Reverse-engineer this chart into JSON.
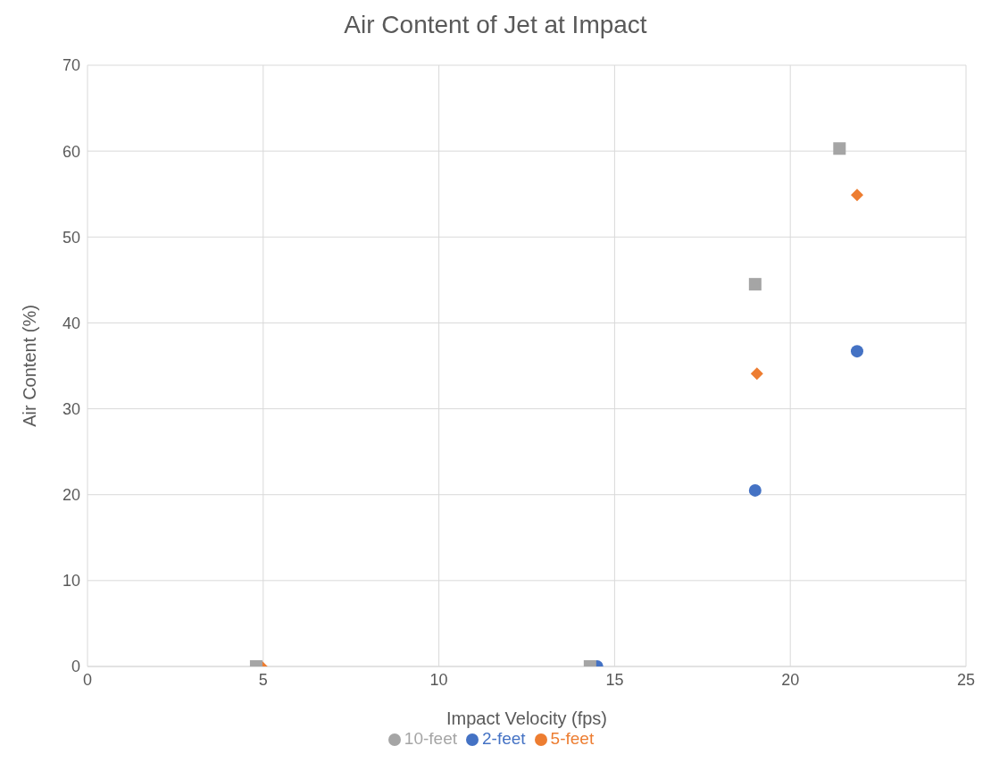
{
  "chart_data": {
    "type": "scatter",
    "title": "Air Content of Jet at Impact",
    "xlabel": "Impact Velocity (fps)",
    "ylabel": "Air Content (%)",
    "xlim": [
      0,
      25
    ],
    "xticks": [
      0,
      5,
      10,
      15,
      20,
      25
    ],
    "ylim": [
      0,
      70
    ],
    "yticks": [
      0,
      10,
      20,
      30,
      40,
      50,
      60,
      70
    ],
    "grid": true,
    "legend": "bottom",
    "series": [
      {
        "name": "2-feet",
        "color": "#4472c4",
        "marker": "circle",
        "x": [
          14.5,
          19.0,
          21.9
        ],
        "values": [
          0,
          20.5,
          36.7
        ]
      },
      {
        "name": "5-feet",
        "color": "#ed7d31",
        "marker": "diamond",
        "x": [
          4.95,
          19.05,
          21.9
        ],
        "values": [
          0,
          34.1,
          54.9
        ]
      },
      {
        "name": "10-feet",
        "color": "#a5a5a5",
        "marker": "square",
        "x": [
          4.8,
          14.3,
          19.0,
          21.4
        ],
        "values": [
          0,
          0,
          44.5,
          60.3
        ]
      }
    ]
  }
}
